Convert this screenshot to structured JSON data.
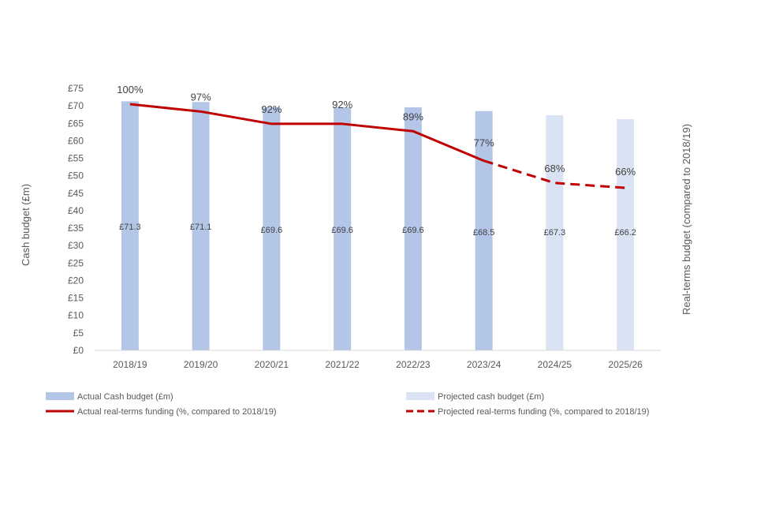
{
  "chart_data": {
    "type": "bar",
    "title": "",
    "categories": [
      "2018/19",
      "2019/20",
      "2020/21",
      "2021/22",
      "2022/23",
      "2023/24",
      "2024/25",
      "2025/26"
    ],
    "series": [
      {
        "name": "Actual Cash budget (£m)",
        "kind": "bar",
        "color": "#b4c6e7",
        "values": [
          71.3,
          71.1,
          69.6,
          69.6,
          69.6,
          68.5,
          null,
          null
        ]
      },
      {
        "name": "Projected cash budget (£m)",
        "kind": "bar",
        "color": "#dae3f3",
        "values": [
          null,
          null,
          null,
          null,
          null,
          null,
          67.3,
          66.2
        ]
      },
      {
        "name": "Actual real-terms funding (%, compared to 2018/19)",
        "kind": "line",
        "color": "#c00000",
        "values": [
          100,
          97,
          92,
          92,
          89,
          77,
          null,
          null
        ]
      },
      {
        "name": "Projected real-terms funding (%, compared to 2018/19)",
        "kind": "line-dashed",
        "color": "#c00000",
        "values": [
          null,
          null,
          null,
          null,
          null,
          77,
          68,
          66
        ]
      }
    ],
    "bar_labels": [
      "£71.3",
      "£71.1",
      "£69.6",
      "£69.6",
      "£69.6",
      "£68.5",
      "£67.3",
      "£66.2"
    ],
    "line_labels": [
      "100%",
      "97%",
      "92%",
      "92%",
      "89%",
      "77%",
      "68%",
      "66%"
    ],
    "y_ticks": [
      "£0",
      "£5",
      "£10",
      "£15",
      "£20",
      "£25",
      "£30",
      "£35",
      "£40",
      "£45",
      "£50",
      "£55",
      "£60",
      "£65",
      "£70",
      "£75"
    ],
    "ylim": [
      0,
      75
    ],
    "y2lim": [
      0,
      106.4
    ],
    "ylabel": "Cash budget (£m)",
    "y2label": "Real-terms budget (compared to 2018/19)",
    "xlabel": "",
    "grid": false,
    "legend_position": "bottom"
  }
}
